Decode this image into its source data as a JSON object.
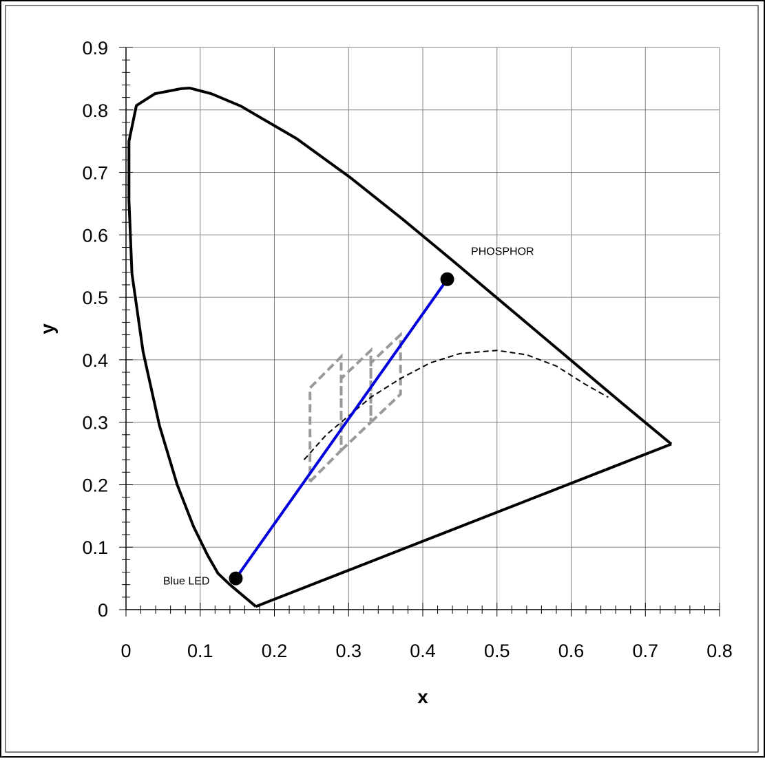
{
  "chart_data": {
    "type": "scatter",
    "title": "",
    "xlabel": "x",
    "ylabel": "y",
    "xlim": [
      0,
      0.8
    ],
    "ylim": [
      0,
      0.9
    ],
    "x_ticks": [
      "0",
      "0.1",
      "0.2",
      "0.3",
      "0.4",
      "0.5",
      "0.6",
      "0.7",
      "0.8"
    ],
    "y_ticks": [
      "0",
      "0.1",
      "0.2",
      "0.3",
      "0.4",
      "0.5",
      "0.6",
      "0.7",
      "0.8",
      "0.9"
    ],
    "grid": true,
    "series": [
      {
        "kind": "spectral-locus",
        "style": "solid-black-thick",
        "x": [
          0.175,
          0.155,
          0.14,
          0.124,
          0.11,
          0.091,
          0.069,
          0.045,
          0.023,
          0.008,
          0.004,
          0.004,
          0.014,
          0.039,
          0.074,
          0.086,
          0.115,
          0.155,
          0.23,
          0.302,
          0.374,
          0.444,
          0.512,
          0.575,
          0.627,
          0.669,
          0.735
        ],
        "y": [
          0.005,
          0.025,
          0.04,
          0.058,
          0.087,
          0.133,
          0.2,
          0.295,
          0.413,
          0.538,
          0.655,
          0.75,
          0.807,
          0.826,
          0.834,
          0.835,
          0.826,
          0.806,
          0.754,
          0.692,
          0.624,
          0.555,
          0.487,
          0.424,
          0.372,
          0.33,
          0.265
        ]
      },
      {
        "kind": "line-of-purples",
        "style": "solid-black-thick",
        "x": [
          0.735,
          0.175
        ],
        "y": [
          0.265,
          0.005
        ]
      },
      {
        "kind": "blackbody-locus",
        "style": "dashed-black",
        "x": [
          0.24,
          0.27,
          0.3,
          0.33,
          0.37,
          0.41,
          0.45,
          0.5,
          0.54,
          0.58,
          0.62,
          0.65
        ],
        "y": [
          0.24,
          0.28,
          0.31,
          0.34,
          0.37,
          0.395,
          0.41,
          0.415,
          0.408,
          0.39,
          0.36,
          0.34
        ]
      },
      {
        "kind": "mixing-line",
        "style": "solid-blue",
        "color": "#0000dd",
        "x": [
          0.148,
          0.433
        ],
        "y": [
          0.05,
          0.529
        ]
      }
    ],
    "bins": [
      {
        "x": [
          0.248,
          0.29,
          0.29,
          0.248,
          0.248
        ],
        "y": [
          0.205,
          0.255,
          0.405,
          0.355,
          0.205
        ]
      },
      {
        "x": [
          0.29,
          0.33,
          0.33,
          0.29,
          0.29
        ],
        "y": [
          0.255,
          0.3,
          0.415,
          0.37,
          0.255
        ]
      },
      {
        "x": [
          0.33,
          0.37,
          0.37,
          0.33,
          0.33
        ],
        "y": [
          0.3,
          0.345,
          0.44,
          0.395,
          0.3
        ]
      }
    ],
    "bins_color": "#999999",
    "points": [
      {
        "label": "Blue LED",
        "x": 0.148,
        "y": 0.05
      },
      {
        "label": "PHOSPHOR",
        "x": 0.433,
        "y": 0.529
      }
    ],
    "annotations": [
      {
        "text": "Blue LED",
        "x": 0.05,
        "y": 0.04
      },
      {
        "text": "PHOSPHOR",
        "x": 0.465,
        "y": 0.568
      }
    ]
  }
}
